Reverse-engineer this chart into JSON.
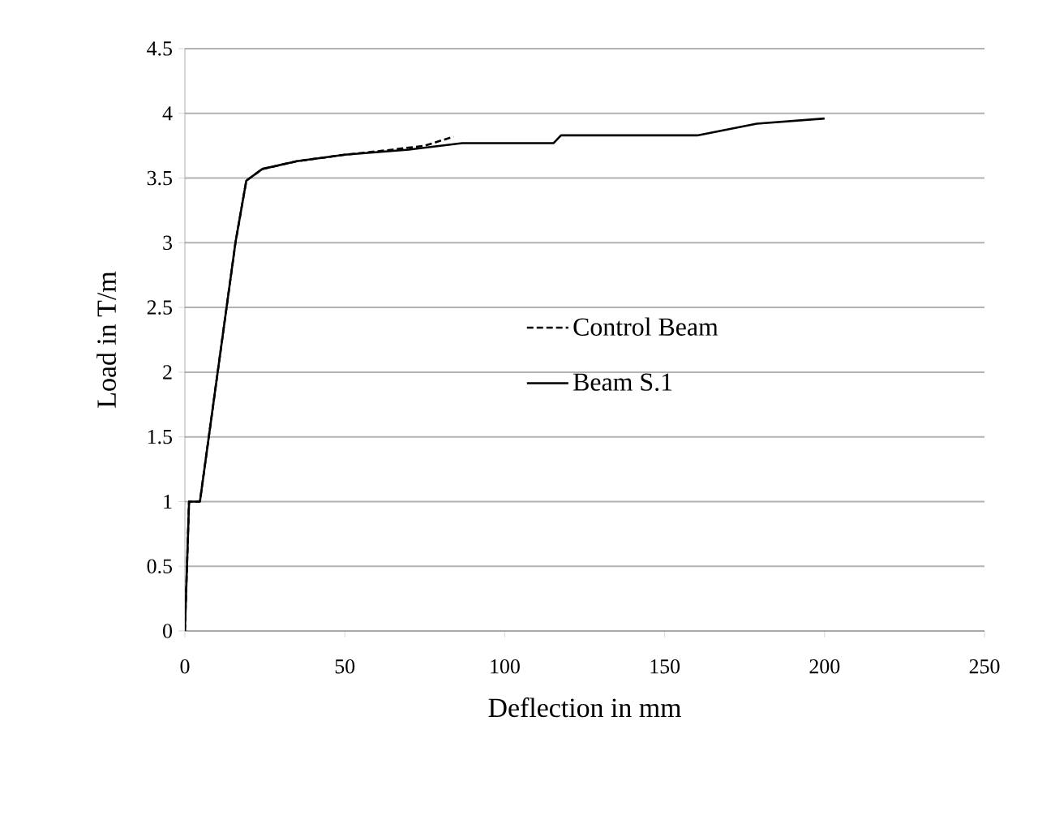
{
  "chart_data": {
    "type": "line",
    "xlabel": "Deflection in mm",
    "ylabel": "Load in T/m",
    "xlim": [
      0,
      250
    ],
    "xticks": [
      0,
      50,
      100,
      150,
      200,
      250
    ],
    "ylim": [
      0,
      4.5
    ],
    "yticks": [
      0,
      0.5,
      1,
      1.5,
      2,
      2.5,
      3,
      3.5,
      4,
      4.5
    ],
    "grid": "y",
    "legend": "right",
    "marker": "none",
    "series": [
      {
        "name": "Control Beam",
        "color": "#000000",
        "line_style": "dashed",
        "x": [
          0,
          1.3,
          4.7,
          15.8,
          19.2,
          24.2,
          35,
          50,
          65,
          75,
          84
        ],
        "values": [
          0,
          1,
          1,
          3,
          3.48,
          3.57,
          3.63,
          3.68,
          3.72,
          3.75,
          3.82
        ]
      },
      {
        "name": "Beam S.1",
        "color": "#000000",
        "line_style": "solid",
        "x": [
          0,
          1.3,
          4.7,
          15.8,
          19.2,
          24.2,
          35,
          50,
          70,
          86.7,
          115.3,
          117.6,
          160.2,
          178.8,
          200
        ],
        "values": [
          0,
          1,
          1,
          3,
          3.48,
          3.57,
          3.63,
          3.68,
          3.72,
          3.77,
          3.77,
          3.83,
          3.83,
          3.92,
          3.96
        ]
      }
    ]
  }
}
